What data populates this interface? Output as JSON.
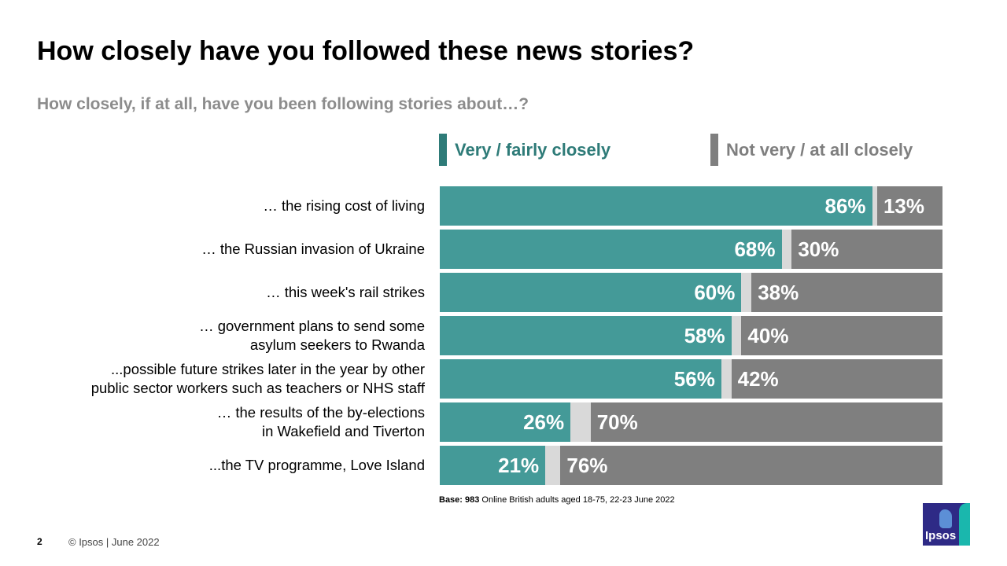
{
  "title": "How closely have you followed these news stories?",
  "subtitle": "How closely, if at all, have you been following stories about…?",
  "legend": {
    "close": "Very / fairly closely",
    "not_close": "Not very / at all closely"
  },
  "colors": {
    "close_bar": "#449a98",
    "close_legend": "#2e7b78",
    "not_close": "#7f7f7f",
    "remainder": "#d9d9d9"
  },
  "chart_data": {
    "type": "bar",
    "orientation": "horizontal",
    "stacked": true,
    "categories": [
      "… the rising cost of living",
      "… the Russian invasion of Ukraine",
      "… this week's rail strikes",
      "… government  plans to send some\nasylum seekers to Rwanda",
      "...possible future strikes later in the year by other\npublic sector workers such as teachers or NHS staff",
      "… the results of the by-elections\nin Wakefield and Tiverton",
      "...the TV programme, Love Island"
    ],
    "series": [
      {
        "name": "Very / fairly closely",
        "values": [
          86,
          68,
          60,
          58,
          56,
          26,
          21
        ]
      },
      {
        "name": "Not very / at all closely",
        "values": [
          13,
          30,
          38,
          40,
          42,
          70,
          76
        ]
      }
    ],
    "value_suffix": "%",
    "xlim": [
      0,
      100
    ],
    "legend_position": "top"
  },
  "footer": {
    "base_label": "Base: 983",
    "base_text": " Online British adults aged 18-75, 22-23 June 2022",
    "page_number": "2",
    "copyright": "© Ipsos | June 2022",
    "logo_text": "Ipsos"
  }
}
